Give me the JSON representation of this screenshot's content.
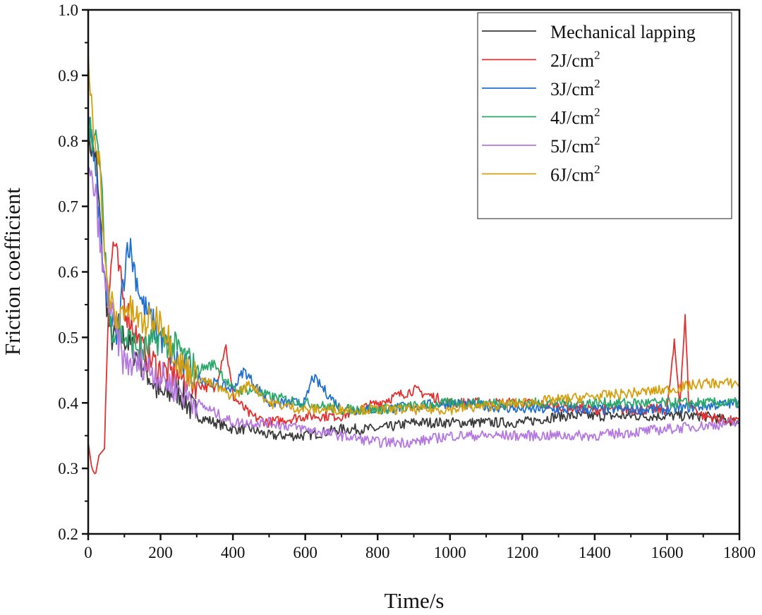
{
  "chart_data": {
    "type": "line",
    "title": "",
    "xlabel": "Time/s",
    "ylabel": "Friction coefficient",
    "xlim": [
      0,
      1800
    ],
    "ylim": [
      0.2,
      1.0
    ],
    "xticks": [
      "0",
      "200",
      "400",
      "600",
      "800",
      "1000",
      "1200",
      "1400",
      "1600",
      "1800"
    ],
    "yticks": [
      "0.2",
      "0.3",
      "0.4",
      "0.5",
      "0.6",
      "0.7",
      "0.8",
      "0.9",
      "1.0"
    ],
    "grid": false,
    "legend_position": "top-right",
    "series": [
      {
        "name": "Mechanical lapping",
        "unit_sup": "",
        "color": "#3a3a3a",
        "x": [
          0,
          20,
          40,
          60,
          100,
          150,
          200,
          250,
          300,
          350,
          400,
          450,
          500,
          600,
          700,
          800,
          900,
          1000,
          1100,
          1200,
          1300,
          1400,
          1500,
          1600,
          1700,
          1800
        ],
        "y": [
          0.8,
          0.78,
          0.62,
          0.5,
          0.5,
          0.46,
          0.41,
          0.42,
          0.38,
          0.37,
          0.36,
          0.36,
          0.35,
          0.35,
          0.36,
          0.36,
          0.37,
          0.37,
          0.37,
          0.37,
          0.38,
          0.38,
          0.38,
          0.38,
          0.38,
          0.37
        ]
      },
      {
        "name": "2J/cm",
        "unit_sup": "2",
        "color": "#e03030",
        "x": [
          0,
          10,
          20,
          30,
          45,
          55,
          70,
          100,
          150,
          200,
          250,
          300,
          350,
          380,
          400,
          450,
          500,
          600,
          700,
          800,
          900,
          1000,
          1200,
          1400,
          1600,
          1620,
          1635,
          1650,
          1660,
          1700,
          1800
        ],
        "y": [
          0.34,
          0.3,
          0.29,
          0.32,
          0.33,
          0.55,
          0.65,
          0.55,
          0.48,
          0.45,
          0.44,
          0.43,
          0.42,
          0.49,
          0.41,
          0.38,
          0.37,
          0.38,
          0.38,
          0.4,
          0.42,
          0.4,
          0.4,
          0.39,
          0.39,
          0.49,
          0.4,
          0.53,
          0.4,
          0.38,
          0.37
        ]
      },
      {
        "name": "3J/cm",
        "unit_sup": "2",
        "color": "#1f6fd0",
        "x": [
          0,
          20,
          50,
          80,
          110,
          150,
          200,
          250,
          300,
          400,
          430,
          500,
          600,
          620,
          700,
          800,
          1000,
          1200,
          1400,
          1600,
          1800
        ],
        "y": [
          0.85,
          0.75,
          0.55,
          0.5,
          0.65,
          0.55,
          0.5,
          0.46,
          0.44,
          0.42,
          0.45,
          0.4,
          0.4,
          0.44,
          0.39,
          0.39,
          0.4,
          0.39,
          0.39,
          0.39,
          0.4
        ]
      },
      {
        "name": "4J/cm",
        "unit_sup": "2",
        "color": "#2aa86a",
        "x": [
          0,
          30,
          60,
          100,
          150,
          200,
          250,
          300,
          350,
          400,
          450,
          500,
          600,
          700,
          800,
          1000,
          1200,
          1400,
          1600,
          1800
        ],
        "y": [
          0.83,
          0.78,
          0.52,
          0.5,
          0.48,
          0.5,
          0.48,
          0.45,
          0.46,
          0.42,
          0.42,
          0.41,
          0.4,
          0.39,
          0.39,
          0.4,
          0.4,
          0.4,
          0.4,
          0.4
        ]
      },
      {
        "name": "5J/cm",
        "unit_sup": "2",
        "color": "#b478e0",
        "x": [
          0,
          20,
          40,
          70,
          100,
          150,
          200,
          250,
          300,
          400,
          500,
          600,
          700,
          800,
          900,
          1000,
          1200,
          1400,
          1600,
          1800
        ],
        "y": [
          0.75,
          0.72,
          0.6,
          0.52,
          0.46,
          0.46,
          0.44,
          0.42,
          0.4,
          0.37,
          0.37,
          0.36,
          0.35,
          0.34,
          0.34,
          0.35,
          0.35,
          0.35,
          0.36,
          0.37
        ]
      },
      {
        "name": "6J/cm",
        "unit_sup": "2",
        "color": "#d4a010",
        "x": [
          0,
          15,
          30,
          50,
          80,
          100,
          150,
          200,
          250,
          300,
          400,
          450,
          500,
          600,
          700,
          800,
          1000,
          1200,
          1400,
          1600,
          1700,
          1800
        ],
        "y": [
          0.92,
          0.82,
          0.78,
          0.58,
          0.52,
          0.55,
          0.52,
          0.53,
          0.46,
          0.44,
          0.41,
          0.43,
          0.4,
          0.39,
          0.39,
          0.39,
          0.39,
          0.4,
          0.41,
          0.42,
          0.43,
          0.43
        ]
      }
    ]
  }
}
